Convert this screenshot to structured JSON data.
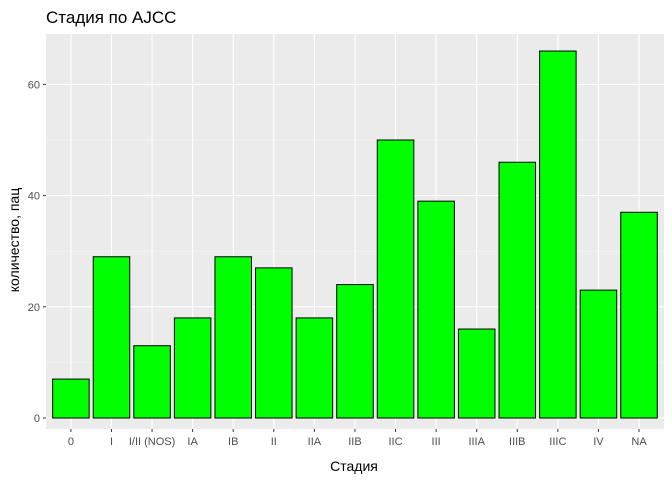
{
  "chart_data": {
    "type": "bar",
    "title": "Стадия по AJCC",
    "xlabel": "Стадия",
    "ylabel": "количество, пац",
    "categories": [
      "0",
      "I",
      "I/II (NOS)",
      "IA",
      "IB",
      "II",
      "IIA",
      "IIB",
      "IIC",
      "III",
      "IIIA",
      "IIIB",
      "IIIC",
      "IV",
      "NA"
    ],
    "values": [
      7,
      29,
      13,
      18,
      29,
      27,
      18,
      24,
      50,
      39,
      16,
      46,
      66,
      23,
      37
    ],
    "ylim": [
      0,
      69
    ],
    "yticks": [
      0,
      20,
      40,
      60
    ],
    "grid": true,
    "colors": {
      "bar_fill": "#00FF00",
      "bar_stroke": "#000000",
      "panel_bg": "#EBEBEB",
      "grid_major": "#FFFFFF",
      "grid_minor": "#F5F5F5"
    }
  }
}
